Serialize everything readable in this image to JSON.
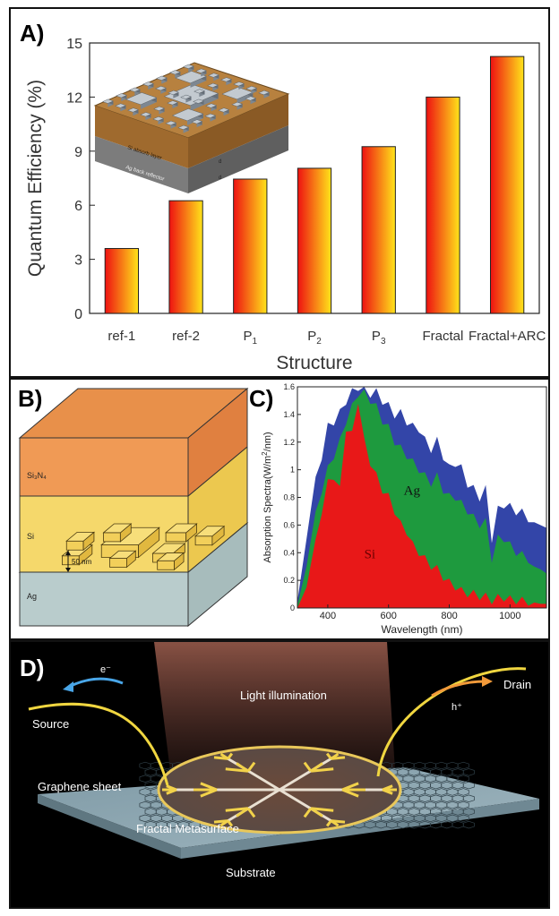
{
  "panels": {
    "a": "A)",
    "b": "B)",
    "c": "C)",
    "d": "D)"
  },
  "chart_data": [
    {
      "id": "A",
      "type": "bar",
      "categories": [
        "ref-1",
        "ref-2",
        "P1",
        "P2",
        "P3",
        "Fractal",
        "Fractal+ARC"
      ],
      "category_labels": [
        {
          "base": "ref-1",
          "sub": ""
        },
        {
          "base": "ref-2",
          "sub": ""
        },
        {
          "base": "P",
          "sub": "1"
        },
        {
          "base": "P",
          "sub": "2"
        },
        {
          "base": "P",
          "sub": "3"
        },
        {
          "base": "Fractal",
          "sub": ""
        },
        {
          "base": "Fractal+ARC",
          "sub": ""
        }
      ],
      "values": [
        3.6,
        6.25,
        7.45,
        8.05,
        9.25,
        12.0,
        14.25
      ],
      "xlabel": "Structure",
      "ylabel": "Quantum Efficiency (%)",
      "ylim": [
        0,
        15
      ],
      "yticks": [
        "0",
        "3",
        "6",
        "9",
        "12",
        "15"
      ],
      "bar_gradient": [
        "#ee1111",
        "#ffe41a"
      ],
      "inset": {
        "layer_labels": [
          "Si absorb layer",
          "Ag back reflector"
        ],
        "dims": [
          "d",
          "d"
        ]
      }
    },
    {
      "id": "C",
      "type": "area",
      "xlabel": "Wavelength (nm)",
      "ylabel": "Absorption Spectra(W/m²/nm)",
      "ylabel_prefix": "Absorption Spectra(W/m",
      "ylabel_sup": "2",
      "ylabel_suffix": "/nm)",
      "xlim": [
        300,
        1120
      ],
      "ylim": [
        0,
        1.6
      ],
      "xticks": [
        400,
        600,
        800,
        1000
      ],
      "yticks": [
        "0",
        "0.2",
        "0.4",
        "0.6",
        "0.8",
        "1",
        "1.2",
        "1.4",
        "1.6"
      ],
      "series": [
        {
          "name": "",
          "color": "#3345a8",
          "x": [
            300,
            330,
            360,
            380,
            400,
            420,
            440,
            460,
            480,
            500,
            520,
            540,
            560,
            580,
            600,
            620,
            640,
            660,
            680,
            700,
            720,
            740,
            760,
            780,
            800,
            820,
            840,
            860,
            880,
            900,
            920,
            940,
            960,
            980,
            1000,
            1020,
            1040,
            1060,
            1080,
            1100,
            1120
          ],
          "values": [
            0.05,
            0.5,
            0.95,
            1.1,
            1.3,
            1.35,
            1.4,
            1.5,
            1.55,
            1.6,
            1.6,
            1.55,
            1.55,
            1.5,
            1.45,
            1.4,
            1.4,
            1.35,
            1.3,
            1.3,
            1.2,
            1.15,
            1.2,
            1.1,
            1.0,
            1.05,
            1.0,
            0.9,
            0.85,
            0.8,
            0.85,
            0.5,
            0.7,
            0.75,
            0.72,
            0.7,
            0.68,
            0.65,
            0.62,
            0.6,
            0.58
          ]
        },
        {
          "name": "Ag",
          "color": "#1e9a3e",
          "x": [
            300,
            330,
            360,
            380,
            400,
            420,
            440,
            460,
            480,
            500,
            520,
            540,
            560,
            580,
            600,
            620,
            640,
            660,
            680,
            700,
            720,
            740,
            760,
            780,
            800,
            820,
            840,
            860,
            880,
            900,
            920,
            940,
            960,
            980,
            1000,
            1020,
            1040,
            1060,
            1080,
            1100,
            1120
          ],
          "values": [
            0.02,
            0.3,
            0.7,
            0.85,
            1.0,
            1.1,
            1.2,
            1.35,
            1.45,
            1.55,
            1.55,
            1.5,
            1.45,
            1.35,
            1.3,
            1.2,
            1.15,
            1.1,
            1.05,
            1.0,
            0.95,
            0.9,
            0.95,
            0.85,
            0.8,
            0.8,
            0.75,
            0.7,
            0.65,
            0.6,
            0.62,
            0.35,
            0.5,
            0.5,
            0.45,
            0.4,
            0.38,
            0.35,
            0.3,
            0.28,
            0.25
          ]
        },
        {
          "name": "Si",
          "color": "#e81818",
          "x": [
            300,
            330,
            360,
            380,
            400,
            420,
            440,
            460,
            480,
            500,
            520,
            540,
            560,
            580,
            600,
            620,
            640,
            660,
            680,
            700,
            720,
            740,
            760,
            780,
            800,
            820,
            840,
            860,
            880,
            900,
            920,
            940,
            960,
            980,
            1000,
            1020,
            1040,
            1060,
            1080,
            1100,
            1120
          ],
          "values": [
            0.0,
            0.15,
            0.5,
            0.7,
            0.9,
            0.95,
            0.85,
            1.3,
            1.25,
            1.5,
            1.2,
            1.05,
            0.95,
            0.85,
            0.8,
            0.7,
            0.6,
            0.55,
            0.45,
            0.4,
            0.35,
            0.3,
            0.28,
            0.22,
            0.18,
            0.15,
            0.12,
            0.1,
            0.1,
            0.08,
            0.08,
            0.05,
            0.07,
            0.07,
            0.06,
            0.05,
            0.05,
            0.04,
            0.04,
            0.03,
            0.03
          ]
        }
      ]
    }
  ],
  "panel_b": {
    "layers": [
      "Si₃N₄",
      "Si",
      "Ag"
    ],
    "dim_label": "50 nm"
  },
  "panel_d": {
    "labels": {
      "electron": "e⁻",
      "source": "Source",
      "light": "Light illumination",
      "drain": "Drain",
      "hole": "h⁺",
      "graphene": "Graphene sheet",
      "metasurface": "Fractal Metasurface",
      "substrate": "Substrate"
    }
  }
}
